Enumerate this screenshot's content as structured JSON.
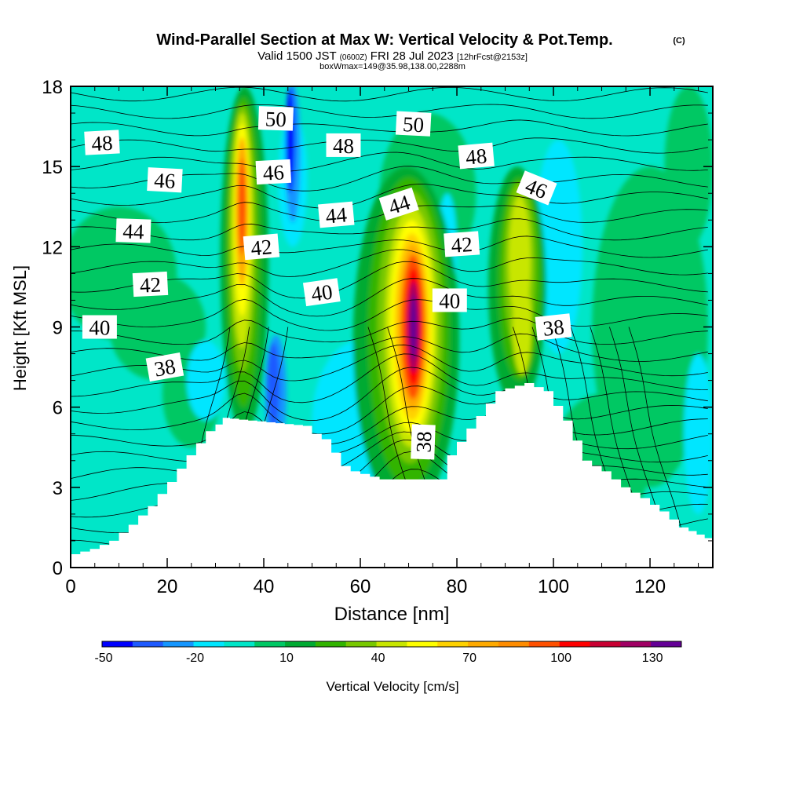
{
  "title": {
    "main": "Wind-Parallel Section at Max W: Vertical Velocity & Pot.Temp.",
    "copyright": "(C)",
    "valid_a": "Valid 1500 JST",
    "valid_utc": "(0600Z)",
    "valid_b": "FRI 28 Jul 2023",
    "valid_fcst": "[12hrFcst@2153z]",
    "box": "boxWmax=149@35.98,138.00,2288m"
  },
  "chart_data": {
    "type": "heatmap",
    "xlabel": "Distance [nm]",
    "ylabel": "Height [Kft MSL]",
    "xlim": [
      0,
      133
    ],
    "ylim": [
      0,
      18
    ],
    "x_ticks": [
      0,
      20,
      40,
      60,
      80,
      100,
      120
    ],
    "y_ticks": [
      0,
      3,
      6,
      9,
      12,
      15,
      18
    ],
    "colorbar": {
      "label": "Vertical Velocity [cm/s]",
      "tick_labels": [
        -50,
        -20,
        10,
        40,
        70,
        100,
        130
      ],
      "colors": [
        "#0000ff",
        "#1e5aff",
        "#1496ff",
        "#00e6ff",
        "#00e6c8",
        "#00c864",
        "#00aa32",
        "#32b400",
        "#78c800",
        "#c8e600",
        "#ffff00",
        "#ffd200",
        "#ffaa00",
        "#ff8c00",
        "#ff5000",
        "#ff0000",
        "#c80032",
        "#a00064",
        "#640096"
      ]
    },
    "wmax_cm_s": 149,
    "updraft_cores": [
      {
        "x": 35.5,
        "y": 13.5,
        "w_cm_s": 100
      },
      {
        "x": 71,
        "y": 9,
        "w_cm_s": 149
      },
      {
        "x": 93,
        "y": 11.5,
        "w_cm_s": 45
      }
    ],
    "downdraft_cores": [
      {
        "x": 42,
        "y": 6.5,
        "w_cm_s": -50
      },
      {
        "x": 46,
        "y": 16,
        "w_cm_s": -40
      }
    ],
    "terrain_kft": [
      [
        0,
        0.4
      ],
      [
        6,
        0.7
      ],
      [
        10,
        1
      ],
      [
        14,
        1.6
      ],
      [
        18,
        2.3
      ],
      [
        22,
        3.2
      ],
      [
        26,
        4.2
      ],
      [
        30,
        5.1
      ],
      [
        33,
        5.6
      ],
      [
        50,
        5.3
      ],
      [
        52,
        5.0
      ],
      [
        54,
        4.8
      ],
      [
        58,
        3.8
      ],
      [
        60,
        3.6
      ],
      [
        66,
        3.3
      ],
      [
        72,
        3.3
      ],
      [
        78,
        3.3
      ],
      [
        80,
        4.2
      ],
      [
        84,
        5.2
      ],
      [
        90,
        6.6
      ],
      [
        96,
        6.9
      ],
      [
        100,
        6.6
      ],
      [
        104,
        5.5
      ],
      [
        108,
        4.0
      ],
      [
        112,
        3.6
      ],
      [
        116,
        3.0
      ],
      [
        120,
        2.6
      ],
      [
        124,
        2.1
      ],
      [
        128,
        1.5
      ],
      [
        133,
        1.1
      ]
    ],
    "theta_contour_labels": [
      {
        "text": "48",
        "x": 6.5,
        "y": 15.9,
        "rot": -3
      },
      {
        "text": "46",
        "x": 19.5,
        "y": 14.5,
        "rot": 3
      },
      {
        "text": "44",
        "x": 13,
        "y": 12.6,
        "rot": 2
      },
      {
        "text": "42",
        "x": 16.5,
        "y": 10.6,
        "rot": -3
      },
      {
        "text": "40",
        "x": 6,
        "y": 9.0,
        "rot": 0
      },
      {
        "text": "38",
        "x": 19.5,
        "y": 7.5,
        "rot": -10
      },
      {
        "text": "50",
        "x": 42.5,
        "y": 16.8,
        "rot": 2
      },
      {
        "text": "46",
        "x": 42,
        "y": 14.8,
        "rot": -3
      },
      {
        "text": "42",
        "x": 39.5,
        "y": 12.0,
        "rot": -5
      },
      {
        "text": "48",
        "x": 56.5,
        "y": 15.8,
        "rot": 0
      },
      {
        "text": "44",
        "x": 55,
        "y": 13.2,
        "rot": -5
      },
      {
        "text": "40",
        "x": 52,
        "y": 10.3,
        "rot": -8
      },
      {
        "text": "50",
        "x": 71,
        "y": 16.6,
        "rot": 3
      },
      {
        "text": "44",
        "x": 68,
        "y": 13.6,
        "rot": -18
      },
      {
        "text": "38",
        "x": 73,
        "y": 4.7,
        "rot": -88
      },
      {
        "text": "48",
        "x": 84,
        "y": 15.4,
        "rot": -5
      },
      {
        "text": "42",
        "x": 81,
        "y": 12.1,
        "rot": -4
      },
      {
        "text": "40",
        "x": 78.5,
        "y": 10.0,
        "rot": 0
      },
      {
        "text": "46",
        "x": 96.5,
        "y": 14.2,
        "rot": 22
      },
      {
        "text": "38",
        "x": 100,
        "y": 9.0,
        "rot": -6
      }
    ]
  }
}
